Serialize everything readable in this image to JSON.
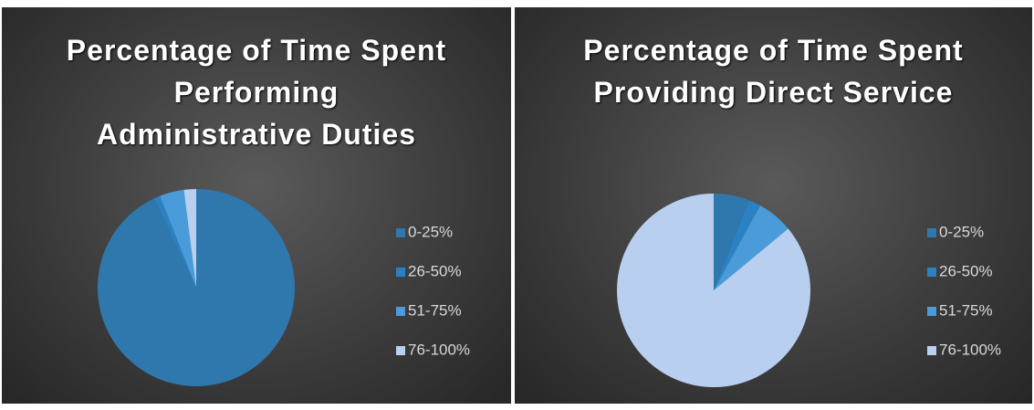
{
  "chart_data": [
    {
      "type": "pie",
      "title": "Percentage of Time Spent Performing Administrative Duties",
      "categories": [
        "0-25%",
        "26-50%",
        "51-75%",
        "76-100%"
      ],
      "values": [
        93,
        1,
        4,
        2
      ],
      "colors": [
        "#2f78ae",
        "#2a82c4",
        "#4a9bd9",
        "#b9cff0"
      ]
    },
    {
      "type": "pie",
      "title": "Percentage of Time Spent Providing Direct Service",
      "categories": [
        "0-25%",
        "26-50%",
        "51-75%",
        "76-100%"
      ],
      "values": [
        6,
        2,
        6,
        86
      ],
      "colors": [
        "#2f78ae",
        "#2a82c4",
        "#4a9bd9",
        "#b9cff0"
      ]
    }
  ]
}
